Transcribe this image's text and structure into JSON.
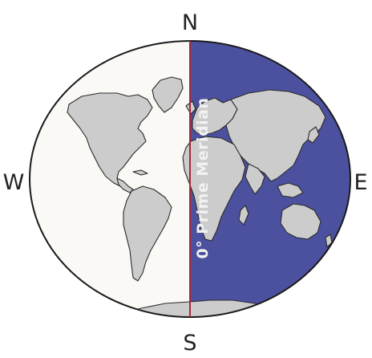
{
  "compass": {
    "north": "N",
    "south": "S",
    "west": "W",
    "east": "E"
  },
  "meridian": {
    "label": "0° Prime Meridian"
  },
  "colors": {
    "western_hemisphere": "#fbf9f6",
    "eastern_hemisphere": "#4b519e",
    "land": "#cccccc",
    "meridian_line": "#a32a3c",
    "outline": "#1a1a1a",
    "meridian_text": "#f2f2f2"
  }
}
